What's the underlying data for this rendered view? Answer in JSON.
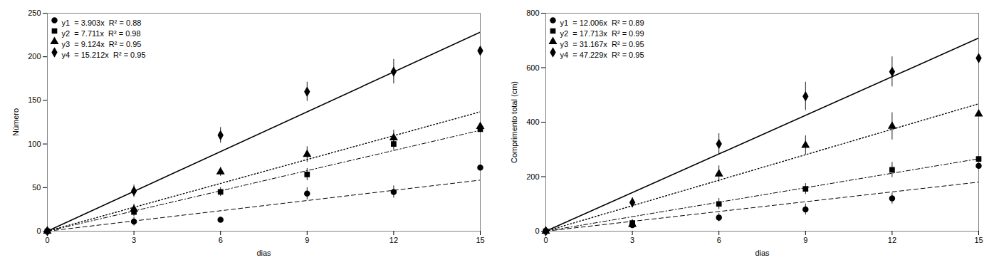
{
  "chart_data": [
    {
      "type": "scatter",
      "xlabel": "dias",
      "ylabel": "Número",
      "xlim": [
        0,
        15
      ],
      "xticks": [
        0,
        3,
        6,
        9,
        12,
        15
      ],
      "ylim": [
        0,
        250
      ],
      "yticks": [
        0,
        50,
        100,
        150,
        200,
        250
      ],
      "grid": false,
      "legend": "upper left",
      "color": "black",
      "series": [
        {
          "name": "y1  = 3.903x  R² = 0.88",
          "slope": 3.903,
          "marker": "circle",
          "line_style": "dashed",
          "x": [
            0,
            3,
            6,
            9,
            12,
            15
          ],
          "values": [
            0,
            11,
            13,
            43,
            45,
            73
          ],
          "yerr": [
            0,
            5,
            3,
            7,
            7,
            8
          ]
        },
        {
          "name": "y2  = 7.711x  R² = 0.98",
          "slope": 7.711,
          "marker": "square",
          "line_style": "dashdot",
          "x": [
            0,
            3,
            6,
            9,
            12,
            15
          ],
          "values": [
            0,
            22,
            45,
            65,
            100,
            117
          ],
          "yerr": [
            0,
            5,
            5,
            7,
            7,
            9
          ]
        },
        {
          "name": "y3  = 9.124x  R² = 0.95",
          "slope": 9.124,
          "marker": "triangle",
          "line_style": "dotted",
          "x": [
            0,
            3,
            6,
            9,
            12,
            15
          ],
          "values": [
            0,
            25,
            68,
            88,
            107,
            120
          ],
          "yerr": [
            0,
            6,
            5,
            9,
            9,
            9
          ]
        },
        {
          "name": "y4  = 15.212x  R² = 0.95",
          "slope": 15.212,
          "marker": "diamond",
          "line_style": "solid",
          "x": [
            0,
            3,
            6,
            9,
            12,
            15
          ],
          "values": [
            0,
            46,
            110,
            160,
            183,
            207
          ],
          "yerr": [
            0,
            7,
            9,
            11,
            14,
            11
          ]
        }
      ]
    },
    {
      "type": "scatter",
      "xlabel": "dias",
      "ylabel": "Comprimento total (cm)",
      "xlim": [
        0,
        15
      ],
      "xticks": [
        0,
        3,
        6,
        9,
        12,
        15
      ],
      "ylim": [
        0,
        800
      ],
      "yticks": [
        0,
        200,
        400,
        600,
        800
      ],
      "grid": false,
      "legend": "upper left",
      "color": "black",
      "series": [
        {
          "name": "y1  = 12.006x  R² = 0.89",
          "slope": 12.006,
          "marker": "circle",
          "line_style": "dashed",
          "x": [
            0,
            3,
            6,
            9,
            12,
            15
          ],
          "values": [
            0,
            22,
            50,
            80,
            120,
            240
          ],
          "yerr": [
            0,
            10,
            15,
            20,
            20,
            20
          ]
        },
        {
          "name": "y2  = 17.713x  R² = 0.99",
          "slope": 17.713,
          "marker": "square",
          "line_style": "dashdot",
          "x": [
            0,
            3,
            6,
            9,
            12,
            15
          ],
          "values": [
            0,
            30,
            100,
            155,
            225,
            265
          ],
          "yerr": [
            0,
            12,
            20,
            20,
            28,
            18
          ]
        },
        {
          "name": "y3  = 31.167x  R² = 0.95",
          "slope": 31.167,
          "marker": "triangle",
          "line_style": "dotted",
          "x": [
            0,
            3,
            6,
            9,
            12,
            15
          ],
          "values": [
            0,
            25,
            210,
            315,
            385,
            430
          ],
          "yerr": [
            0,
            15,
            30,
            35,
            50,
            40
          ]
        },
        {
          "name": "y4  = 47.229x  R² = 0.95",
          "slope": 47.229,
          "marker": "diamond",
          "line_style": "solid",
          "x": [
            0,
            3,
            6,
            9,
            12,
            15
          ],
          "values": [
            0,
            105,
            320,
            495,
            585,
            635
          ],
          "yerr": [
            0,
            18,
            38,
            52,
            55,
            50
          ]
        }
      ]
    }
  ]
}
